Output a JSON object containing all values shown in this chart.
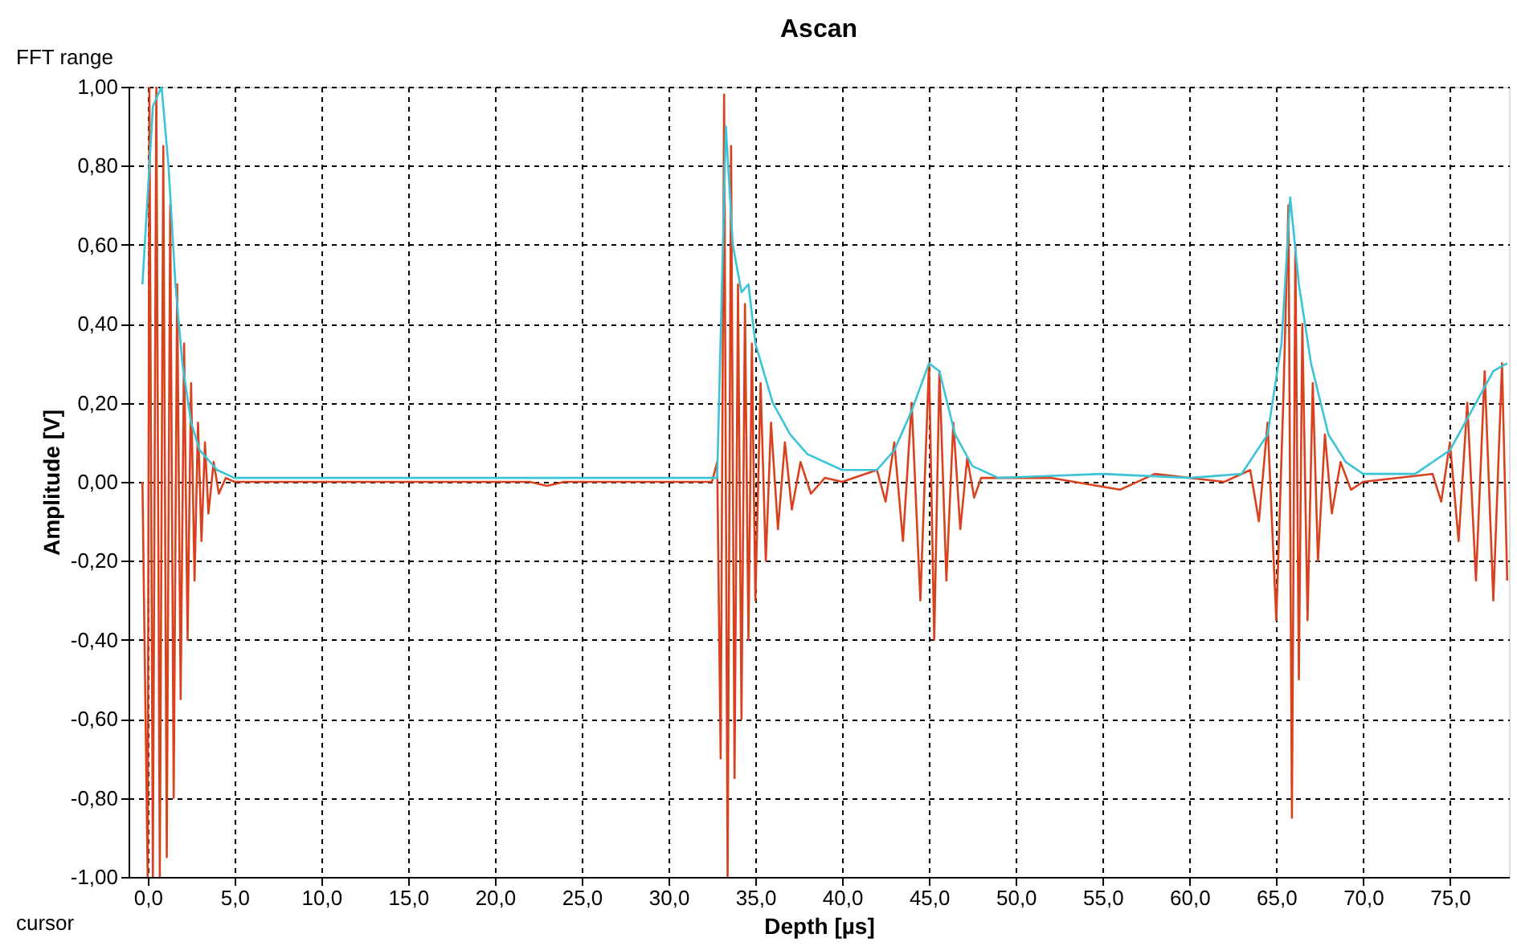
{
  "chart_data": {
    "type": "line",
    "title": "Ascan",
    "xlabel": "Depth [µs]",
    "ylabel": "Amplitude [V]",
    "annotations": [
      "FFT range",
      "cursor"
    ],
    "xlim": [
      -1.1,
      78.4
    ],
    "ylim": [
      -1,
      1
    ],
    "xticks": [
      {
        "value": 0,
        "label": "0,0"
      },
      {
        "value": 5,
        "label": "5,0"
      },
      {
        "value": 10,
        "label": "10,0"
      },
      {
        "value": 15,
        "label": "15,0"
      },
      {
        "value": 20,
        "label": "20,0"
      },
      {
        "value": 25,
        "label": "25,0"
      },
      {
        "value": 30,
        "label": "30,0"
      },
      {
        "value": 35,
        "label": "35,0"
      },
      {
        "value": 40,
        "label": "40,0"
      },
      {
        "value": 45,
        "label": "45,0"
      },
      {
        "value": 50,
        "label": "50,0"
      },
      {
        "value": 55,
        "label": "55,0"
      },
      {
        "value": 60,
        "label": "60,0"
      },
      {
        "value": 65,
        "label": "65,0"
      },
      {
        "value": 70,
        "label": "70,0"
      },
      {
        "value": 75,
        "label": "75,0"
      }
    ],
    "yticks": [
      {
        "value": -1,
        "label": "-1,00"
      },
      {
        "value": -0.8,
        "label": "-0,80"
      },
      {
        "value": -0.6,
        "label": "-0,60"
      },
      {
        "value": -0.4,
        "label": "-0,40"
      },
      {
        "value": -0.2,
        "label": "-0,20"
      },
      {
        "value": 0,
        "label": "0,00"
      },
      {
        "value": 0.2,
        "label": "0,20"
      },
      {
        "value": 0.4,
        "label": "0,40"
      },
      {
        "value": 0.6,
        "label": "0,60"
      },
      {
        "value": 0.8,
        "label": "0,80"
      },
      {
        "value": 1,
        "label": "1,00"
      }
    ],
    "grid": true,
    "marker": "none",
    "line_style": "solid",
    "series": [
      {
        "color": "#d9421f",
        "x": [
          -0.3,
          0.0,
          0.1,
          0.3,
          0.5,
          0.7,
          0.9,
          1.1,
          1.3,
          1.5,
          1.7,
          1.9,
          2.1,
          2.3,
          2.5,
          2.7,
          2.9,
          3.1,
          3.3,
          3.5,
          3.8,
          4.1,
          4.5,
          5.0,
          10,
          22,
          23,
          24,
          32.5,
          32.8,
          33.0,
          33.2,
          33.4,
          33.6,
          33.8,
          34.0,
          34.2,
          34.4,
          34.6,
          34.8,
          35.0,
          35.3,
          35.6,
          35.9,
          36.3,
          36.7,
          37.1,
          37.6,
          38.2,
          39,
          40,
          42,
          42.5,
          43,
          43.5,
          44,
          44.5,
          45,
          45.3,
          45.6,
          46,
          46.4,
          46.8,
          47.2,
          47.6,
          48,
          52,
          56,
          58,
          62,
          63.5,
          64,
          64.5,
          65,
          65.4,
          65.7,
          65.9,
          66.1,
          66.3,
          66.5,
          66.8,
          67.1,
          67.4,
          67.8,
          68.2,
          68.7,
          69.3,
          70,
          74,
          74.5,
          75,
          75.5,
          76,
          76.5,
          77,
          77.5,
          78,
          78.3
        ],
        "values": [
          0,
          -1.0,
          1.0,
          -1.0,
          1.0,
          -1.0,
          0.85,
          -0.95,
          0.7,
          -0.8,
          0.5,
          -0.55,
          0.35,
          -0.4,
          0.25,
          -0.25,
          0.15,
          -0.15,
          0.1,
          -0.08,
          0.05,
          -0.03,
          0.01,
          0,
          0,
          0,
          -0.01,
          0,
          0,
          0.05,
          -0.7,
          0.98,
          -1.0,
          0.85,
          -0.75,
          0.5,
          -0.6,
          0.45,
          -0.4,
          0.35,
          -0.3,
          0.25,
          -0.2,
          0.15,
          -0.12,
          0.1,
          -0.07,
          0.05,
          -0.03,
          0.01,
          0,
          0.03,
          -0.05,
          0.1,
          -0.15,
          0.2,
          -0.3,
          0.3,
          -0.4,
          0.28,
          -0.25,
          0.15,
          -0.12,
          0.06,
          -0.04,
          0.01,
          0.01,
          -0.02,
          0.02,
          0,
          0.03,
          -0.1,
          0.15,
          -0.35,
          0.2,
          0.7,
          -0.85,
          0.6,
          -0.5,
          0.4,
          -0.35,
          0.25,
          -0.2,
          0.12,
          -0.08,
          0.05,
          -0.02,
          0,
          0.02,
          -0.05,
          0.1,
          -0.15,
          0.2,
          -0.25,
          0.28,
          -0.3,
          0.3,
          -0.25
        ]
      },
      {
        "color": "#3cc3d6",
        "x": [
          -0.3,
          0.3,
          0.8,
          1.2,
          1.6,
          2.0,
          2.5,
          3,
          4,
          5,
          32.8,
          33.3,
          33.7,
          34.2,
          34.6,
          35.0,
          36,
          37,
          38,
          40,
          42,
          43,
          44,
          45,
          45.6,
          46.5,
          47.5,
          49,
          55,
          60,
          63,
          64.5,
          65.3,
          65.8,
          66.3,
          67,
          68,
          69,
          70,
          73,
          75,
          76.5,
          77.5,
          78.3
        ],
        "values": [
          0.5,
          0.95,
          1.0,
          0.8,
          0.5,
          0.3,
          0.15,
          0.08,
          0.03,
          0.01,
          0.01,
          0.9,
          0.6,
          0.48,
          0.5,
          0.35,
          0.2,
          0.12,
          0.07,
          0.03,
          0.03,
          0.08,
          0.18,
          0.3,
          0.28,
          0.12,
          0.04,
          0.01,
          0.02,
          0.01,
          0.02,
          0.12,
          0.35,
          0.72,
          0.5,
          0.3,
          0.12,
          0.05,
          0.02,
          0.02,
          0.08,
          0.2,
          0.28,
          0.3
        ]
      }
    ]
  }
}
